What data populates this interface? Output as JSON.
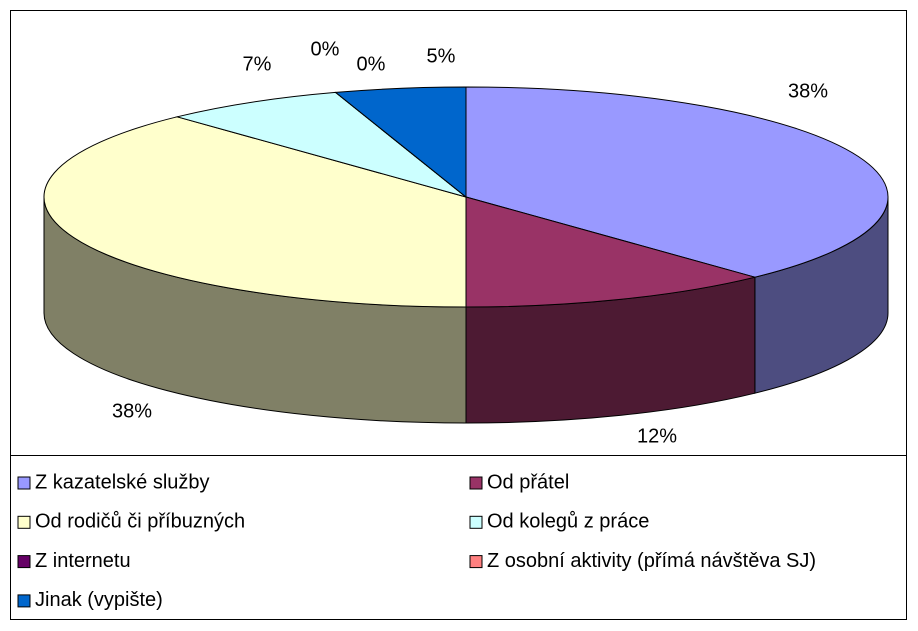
{
  "chart_data": {
    "type": "pie3d",
    "categories": [
      "Z kazatelské služby",
      "Od přátel",
      "Od rodičů či příbuzných",
      "Od kolegů z práce",
      "Z internetu",
      "Z osobní aktivity (přímá návštěva SJ)",
      "Jinak (vypište)"
    ],
    "values": [
      38,
      12,
      38,
      7,
      0,
      0,
      5
    ],
    "value_labels": [
      "38%",
      "12%",
      "38%",
      "7%",
      "0%",
      "0%",
      "5%"
    ],
    "colors": [
      "#9999ff",
      "#993366",
      "#ffffcc",
      "#ccffff",
      "#660066",
      "#ff8080",
      "#0066cc"
    ],
    "legend": "bottom"
  }
}
